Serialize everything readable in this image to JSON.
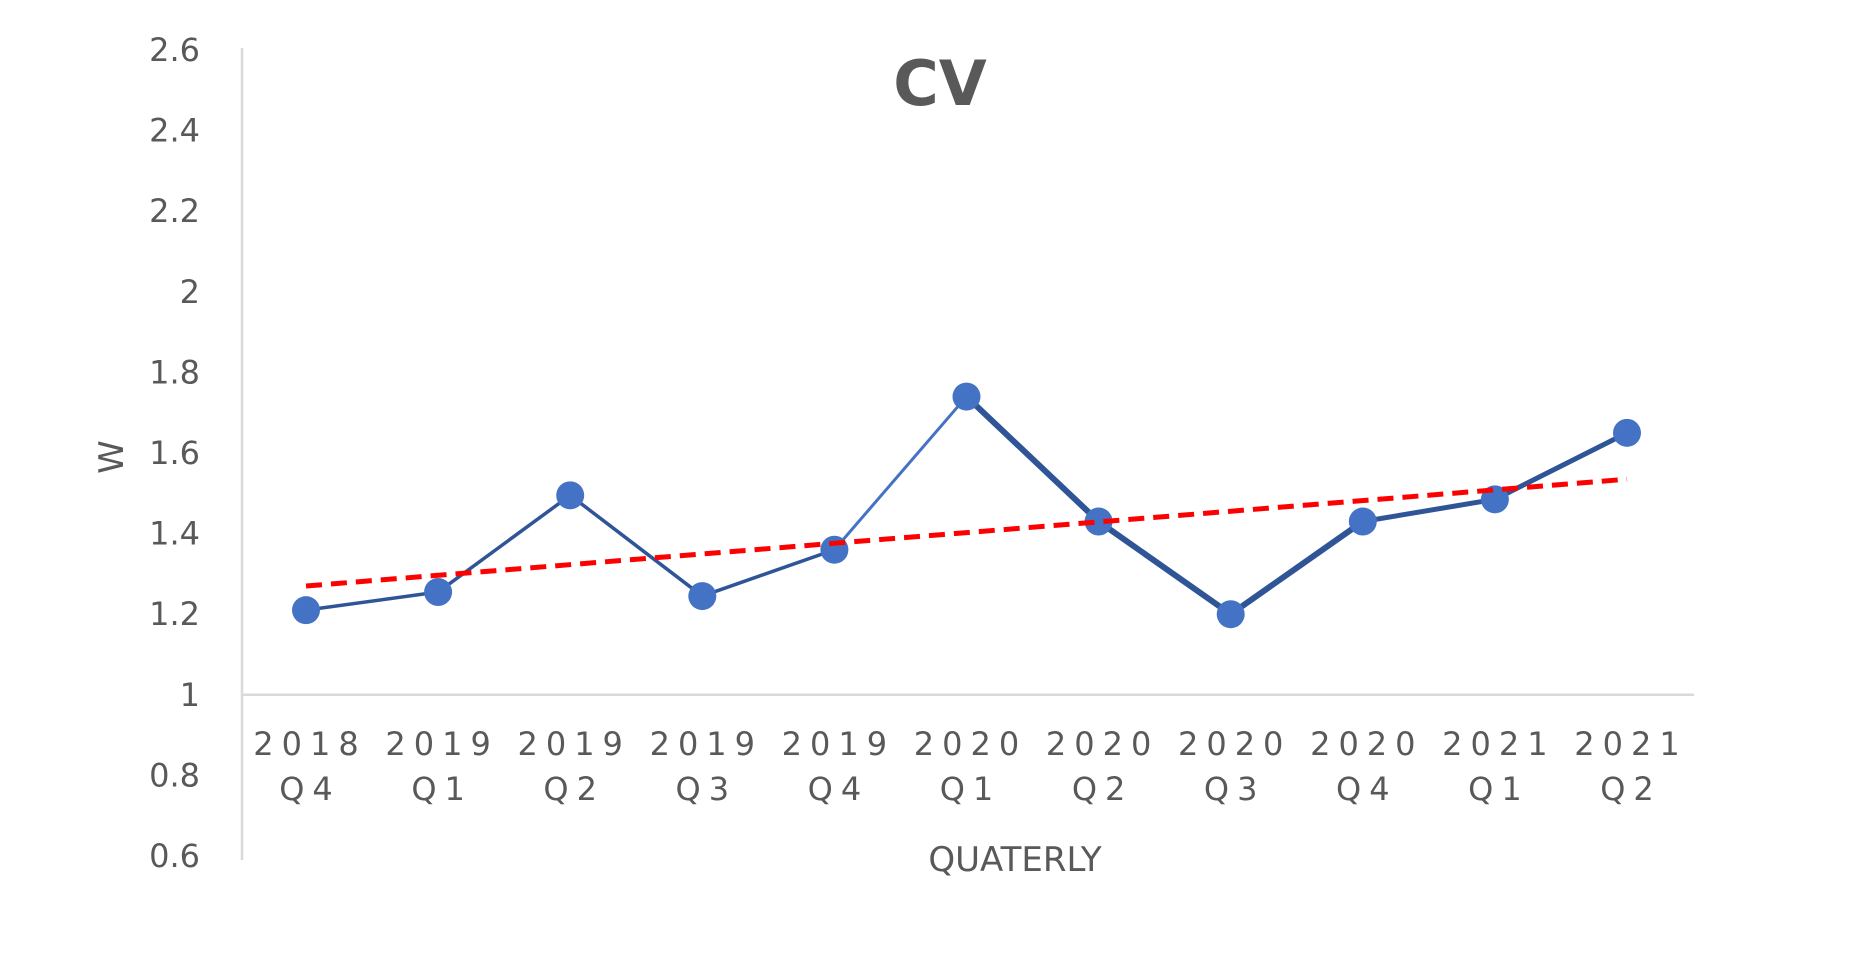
{
  "chart_data": {
    "type": "line",
    "title": "CV",
    "xlabel": "QUATERLY",
    "ylabel": "W",
    "ylim": [
      0.6,
      2.6
    ],
    "x_crosses_at": 1,
    "yticks": [
      "0.6",
      "0.8",
      "1",
      "1.2",
      "1.4",
      "1.6",
      "1.8",
      "2",
      "2.2",
      "2.4",
      "2.6"
    ],
    "categories": [
      [
        "2018",
        "Q4"
      ],
      [
        "2019",
        "Q1"
      ],
      [
        "2019",
        "Q2"
      ],
      [
        "2019",
        "Q3"
      ],
      [
        "2019",
        "Q4"
      ],
      [
        "2020",
        "Q1"
      ],
      [
        "2020",
        "Q2"
      ],
      [
        "2020",
        "Q3"
      ],
      [
        "2020",
        "Q4"
      ],
      [
        "2021",
        "Q1"
      ],
      [
        "2021",
        "Q2"
      ]
    ],
    "series": [
      {
        "values": [
          1.21,
          1.255,
          1.495,
          1.245,
          1.36,
          1.74,
          1.43,
          1.2,
          1.43,
          1.485,
          1.65
        ],
        "color": "#4472C4",
        "line_color": "#2F5597",
        "marker": "circle"
      }
    ],
    "trendline": {
      "type": "linear",
      "start": 1.27,
      "end": 1.535,
      "color": "#FF0000",
      "style": "dashed"
    },
    "grid": false,
    "legend": "none"
  }
}
